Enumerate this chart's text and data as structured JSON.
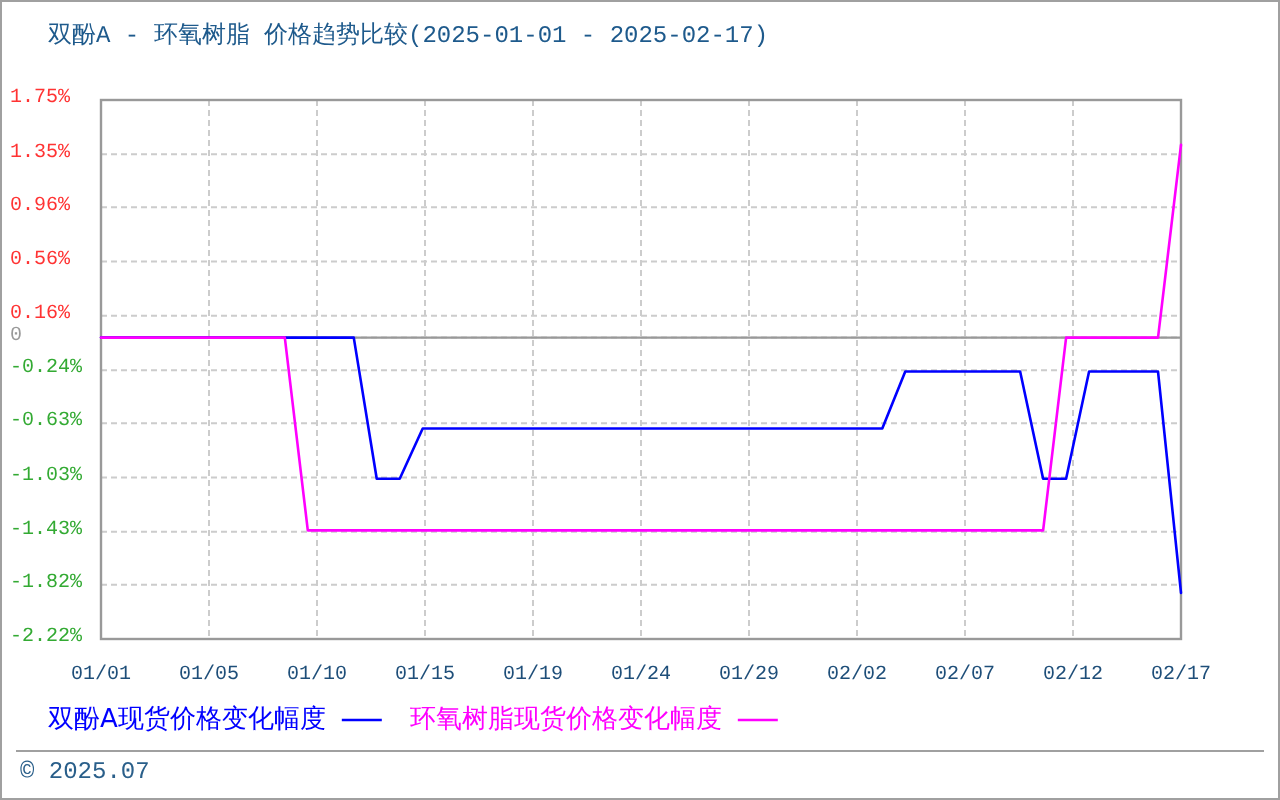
{
  "chart_data": {
    "type": "line",
    "title": "双酚A - 环氧树脂 价格趋势比较(2025-01-01 - 2025-02-17)",
    "xlim": [
      "2025-01-01",
      "2025-02-17"
    ],
    "xticks": [
      {
        "value": "2025-01-01",
        "label": "01/01"
      },
      {
        "value": "2025-01-05T16:48",
        "label": "01/05"
      },
      {
        "value": "2025-01-10T09:36",
        "label": "01/10"
      },
      {
        "value": "2025-01-15T02:24",
        "label": "01/15"
      },
      {
        "value": "2025-01-19T19:12",
        "label": "01/19"
      },
      {
        "value": "2025-01-24T12:00",
        "label": "01/24"
      },
      {
        "value": "2025-01-29T04:48",
        "label": "01/29"
      },
      {
        "value": "2025-02-02T21:36",
        "label": "02/02"
      },
      {
        "value": "2025-02-07T14:24",
        "label": "02/07"
      },
      {
        "value": "2025-02-12T07:12",
        "label": "02/12"
      },
      {
        "value": "2025-02-17",
        "label": "02/17"
      }
    ],
    "ylim": [
      -2.22,
      1.75
    ],
    "yticks": [
      {
        "value": 1.75,
        "label": "1.75%"
      },
      {
        "value": 1.35,
        "label": "1.35%"
      },
      {
        "value": 0.96,
        "label": "0.96%"
      },
      {
        "value": 0.56,
        "label": "0.56%"
      },
      {
        "value": 0.16,
        "label": "0.16%"
      },
      0,
      {
        "value": -0.24,
        "label": "-0.24%"
      },
      {
        "value": -0.63,
        "label": "-0.63%"
      },
      {
        "value": -1.03,
        "label": "-1.03%"
      },
      {
        "value": -1.43,
        "label": "-1.43%"
      },
      {
        "value": -1.82,
        "label": "-1.82%"
      },
      {
        "value": -2.22,
        "label": "-2.22%"
      }
    ],
    "series": [
      {
        "name": "双酚A现货价格变化幅度",
        "color": "#0000ff",
        "x": [
          "2025-01-01",
          "2025-01-12",
          "2025-01-13",
          "2025-01-14",
          "2025-01-15",
          "2025-02-04",
          "2025-02-05",
          "2025-02-10",
          "2025-02-11",
          "2025-02-12",
          "2025-02-13",
          "2025-02-16",
          "2025-02-17"
        ],
        "values": [
          0,
          0,
          -1.04,
          -1.04,
          -0.67,
          -0.67,
          -0.25,
          -0.25,
          -1.04,
          -1.04,
          -0.25,
          -0.25,
          -1.88
        ]
      },
      {
        "name": "环氧树脂现货价格变化幅度",
        "color": "#ff00ff",
        "x": [
          "2025-01-01",
          "2025-01-09",
          "2025-01-10",
          "2025-02-11",
          "2025-02-12",
          "2025-02-16",
          "2025-02-17"
        ],
        "values": [
          0,
          0,
          -1.42,
          -1.42,
          0,
          0,
          1.42
        ]
      }
    ],
    "ref_lines": [
      {
        "axis": "y",
        "value": 0,
        "color": "#999999"
      }
    ],
    "grid": true,
    "legend": "bottom",
    "marker": "none",
    "line_style": "solid",
    "annotations": [
      "© 2025.07"
    ]
  }
}
